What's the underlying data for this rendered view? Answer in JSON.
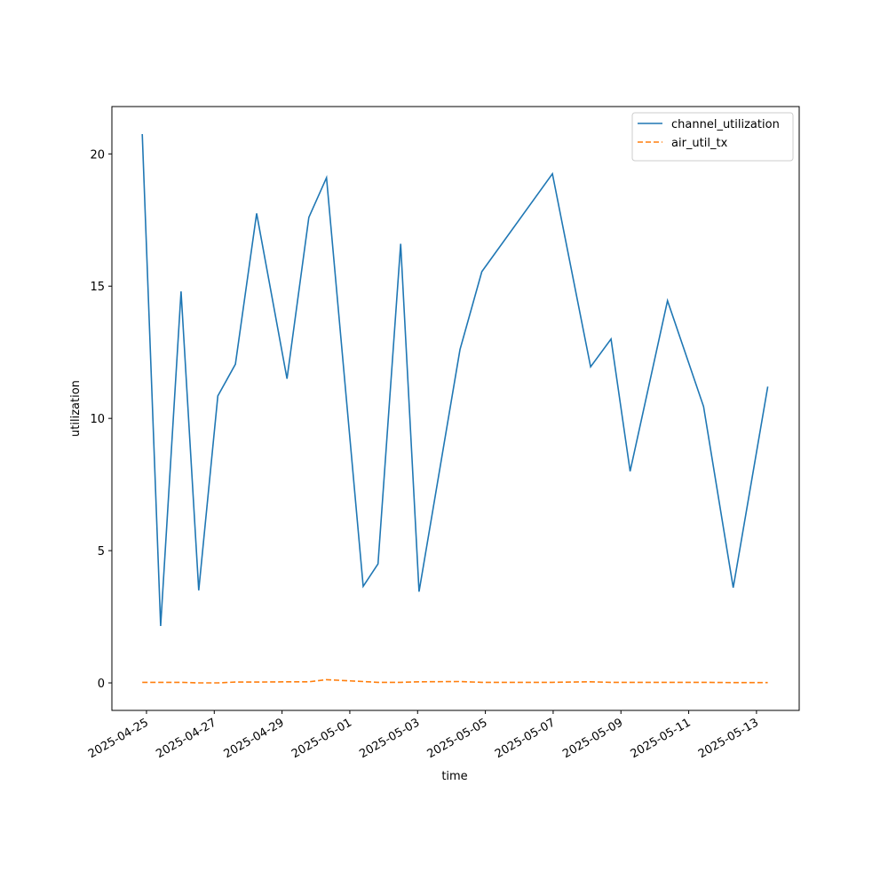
{
  "chart_data": {
    "type": "line",
    "xlabel": "time",
    "ylabel": "utilization",
    "x": [
      "2025-04-24T21:00Z",
      "2025-04-25T10:00Z",
      "2025-04-26T00:30Z",
      "2025-04-26T13:00Z",
      "2025-04-27T02:30Z",
      "2025-04-27T15:00Z",
      "2025-04-28T06:00Z",
      "2025-04-29T03:30Z",
      "2025-04-29T19:00Z",
      "2025-04-30T07:30Z",
      "2025-05-01T09:30Z",
      "2025-05-01T20:00Z",
      "2025-05-02T12:00Z",
      "2025-05-03T01:00Z",
      "2025-05-04T06:00Z",
      "2025-05-04T21:30Z",
      "2025-05-06T23:30Z",
      "2025-05-08T02:30Z",
      "2025-05-08T17:00Z",
      "2025-05-09T06:30Z",
      "2025-05-10T09:00Z",
      "2025-05-11T10:30Z",
      "2025-05-12T07:30Z",
      "2025-05-13T08:00Z"
    ],
    "series": [
      {
        "name": "channel_utilization",
        "color": "#1f77b4",
        "dash": "solid",
        "values": [
          20.75,
          2.15,
          14.8,
          3.5,
          10.85,
          12.05,
          17.75,
          11.5,
          17.6,
          19.1,
          3.65,
          4.5,
          16.6,
          3.45,
          12.6,
          15.55,
          19.25,
          11.95,
          13.0,
          8.0,
          14.45,
          10.45,
          3.6,
          11.2
        ]
      },
      {
        "name": "air_util_tx",
        "color": "#ff7f0e",
        "dash": "dashed",
        "values": [
          0.02,
          0.02,
          0.02,
          0,
          0,
          0.03,
          0.03,
          0.04,
          0.04,
          0.12,
          0.05,
          0.02,
          0.02,
          0.04,
          0.05,
          0.02,
          0.02,
          0.04,
          0.02,
          0.02,
          0.02,
          0.02,
          0.01,
          0.01
        ]
      }
    ],
    "xlim": [
      "2025-04-23T23:30Z",
      "2025-05-14T06:15Z"
    ],
    "xticks": [
      "2025-04-25",
      "2025-04-27",
      "2025-04-29",
      "2025-05-01",
      "2025-05-03",
      "2025-05-05",
      "2025-05-07",
      "2025-05-09",
      "2025-05-11",
      "2025-05-13"
    ],
    "ylim": [
      -1.04,
      21.79
    ],
    "yticks": [
      0,
      5,
      10,
      15,
      20
    ],
    "grid": false,
    "legend": "upper right"
  }
}
